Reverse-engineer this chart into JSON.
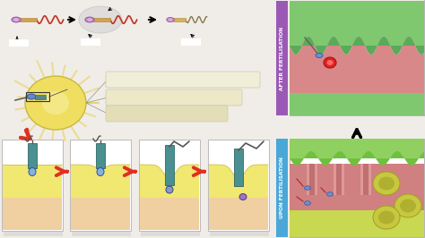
{
  "bg_color": "#f0ede8",
  "after_label": "AFTER FERTILISATION",
  "upon_label": "UPON FERTILISATION",
  "after_label_bg": "#9b59b6",
  "upon_label_bg": "#4aa8d8",
  "sperm_tail_color": "#c0392b",
  "sperm_head_color": "#7090c8",
  "sperm_mid_color": "#d4a060",
  "teal_color": "#4a9090",
  "arrow_red": "#e03020",
  "panel_yellow_top": "#f0e870",
  "panel_yellow_mid": "#f5e898",
  "panel_peach": "#f0d0a0",
  "panel_border": "#bbbbbb",
  "green_tissue": "#6db86d",
  "pink_tissue": "#e09090",
  "egg_yellow": "#d4c840",
  "egg_dark": "#b8aa30"
}
